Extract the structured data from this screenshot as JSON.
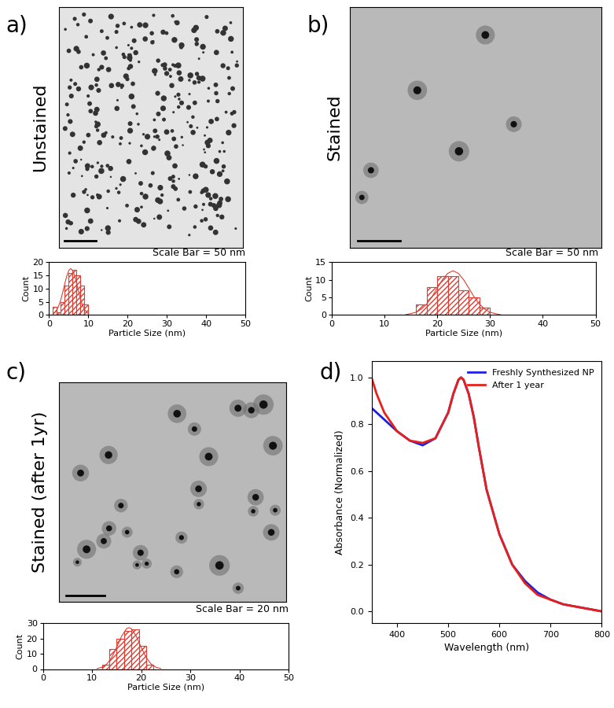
{
  "chart_data": [
    {
      "type": "histogram",
      "panel": "a)",
      "image_label": "Unstained",
      "scale_bar": "Scale Bar = 50 nm",
      "xlabel": "Particle Size (nm)",
      "ylabel": "Count",
      "color": "#e03c31",
      "bins": [
        1,
        2,
        3,
        4,
        5,
        6,
        7,
        8,
        9,
        10
      ],
      "counts": [
        3,
        1,
        5,
        11,
        16,
        17,
        15,
        11,
        4
      ],
      "fit": {
        "type": "line",
        "x": [
          1,
          1.5,
          2,
          2.5,
          3,
          3.5,
          4,
          4.5,
          5,
          5.5,
          6,
          6.5,
          7,
          7.5,
          8,
          8.5,
          9,
          9.5,
          10
        ],
        "values": [
          0.5,
          1.1,
          2.1,
          3.7,
          5.9,
          8.8,
          11.9,
          14.7,
          16.8,
          17.5,
          16.8,
          14.7,
          11.9,
          8.8,
          5.9,
          3.7,
          2.1,
          1.1,
          0.5
        ]
      },
      "xlim": [
        0,
        50
      ],
      "xticks": [
        0,
        10,
        20,
        30,
        40,
        50
      ],
      "ylim": [
        0,
        20
      ],
      "yticks": [
        0,
        5,
        10,
        15,
        20
      ]
    },
    {
      "type": "histogram",
      "panel": "b)",
      "image_label": "Stained",
      "scale_bar": "Scale Bar = 50 nm",
      "xlabel": "Particle Size (nm)",
      "ylabel": "Count",
      "color": "#e03c31",
      "bins": [
        16,
        18,
        20,
        22,
        24,
        26,
        28,
        30
      ],
      "counts": [
        3,
        8,
        11,
        11,
        7,
        5,
        2
      ],
      "fit": {
        "type": "line",
        "x": [
          14,
          15,
          16,
          17,
          18,
          19,
          20,
          21,
          22,
          23,
          24,
          25,
          26,
          27,
          28,
          29,
          30,
          31,
          32
        ],
        "values": [
          0.1,
          0.4,
          0.8,
          1.7,
          3.1,
          5.1,
          7.6,
          10.0,
          11.8,
          12.5,
          11.8,
          10.0,
          7.6,
          5.1,
          3.1,
          1.7,
          0.8,
          0.4,
          0.1
        ]
      },
      "xlim": [
        0,
        50
      ],
      "xticks": [
        0,
        10,
        20,
        30,
        40,
        50
      ],
      "ylim": [
        0,
        15
      ],
      "yticks": [
        0,
        5,
        10,
        15
      ]
    },
    {
      "type": "histogram",
      "panel": "c)",
      "image_label": "Stained (after 1yr)",
      "scale_bar": "Scale Bar = 20 nm",
      "xlabel": "Particle Size (nm)",
      "ylabel": "Count",
      "color": "#e03c31",
      "bins": [
        12,
        13.5,
        15,
        16.5,
        18,
        19.5,
        21,
        22.5
      ],
      "counts": [
        3,
        13,
        20,
        25,
        26,
        15,
        3
      ],
      "fit": {
        "type": "line",
        "x": [
          11,
          12,
          13,
          14,
          15,
          16,
          17,
          17.5,
          18,
          19,
          20,
          21,
          22,
          23,
          24
        ],
        "values": [
          0.3,
          1.2,
          3.3,
          7.6,
          14.1,
          21.4,
          26.3,
          27,
          26.3,
          21.4,
          14.1,
          7.6,
          3.3,
          1.2,
          0.3
        ]
      },
      "xlim": [
        0,
        50
      ],
      "xticks": [
        0,
        10,
        20,
        30,
        40,
        50
      ],
      "ylim": [
        0,
        30
      ],
      "yticks": [
        0,
        10,
        20,
        30
      ]
    },
    {
      "type": "line",
      "panel": "d)",
      "xlabel": "Wavelength (nm)",
      "ylabel": "Absorbance (Normalized)",
      "legend": "upper right",
      "x": [
        350,
        360,
        375,
        400,
        425,
        450,
        475,
        500,
        510,
        520,
        525,
        530,
        540,
        550,
        560,
        575,
        600,
        625,
        650,
        675,
        700,
        725,
        750,
        775,
        800
      ],
      "series": [
        {
          "name": "Freshly Synthesized NP",
          "color": "#1f1fe0",
          "values": [
            0.87,
            0.85,
            0.82,
            0.77,
            0.73,
            0.71,
            0.74,
            0.85,
            0.93,
            0.99,
            1.0,
            0.99,
            0.93,
            0.83,
            0.7,
            0.52,
            0.33,
            0.2,
            0.13,
            0.08,
            0.05,
            0.03,
            0.02,
            0.01,
            0.0
          ]
        },
        {
          "name": "After 1 year",
          "color": "#e8201a",
          "values": [
            1.0,
            0.93,
            0.85,
            0.77,
            0.73,
            0.72,
            0.74,
            0.85,
            0.93,
            0.99,
            1.0,
            0.99,
            0.93,
            0.83,
            0.7,
            0.52,
            0.33,
            0.2,
            0.12,
            0.07,
            0.05,
            0.03,
            0.02,
            0.01,
            0.0
          ]
        }
      ],
      "xlim": [
        350,
        800
      ],
      "xticks": [
        400,
        500,
        600,
        700,
        800
      ],
      "ylim": [
        -0.05,
        1.07
      ],
      "yticks": [
        {
          "value": 0,
          "label": "0.0"
        },
        {
          "value": 0.2,
          "label": "0.2"
        },
        {
          "value": 0.4,
          "label": "0.4"
        },
        {
          "value": 0.6,
          "label": "0.6"
        },
        {
          "value": 0.8,
          "label": "0.8"
        },
        {
          "value": 1.0,
          "label": "1.0"
        }
      ]
    }
  ]
}
